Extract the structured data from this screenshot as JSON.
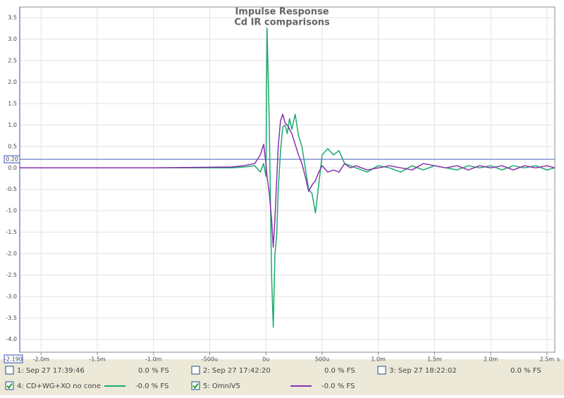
{
  "chart_data": {
    "type": "line",
    "title": "Impulse Response",
    "subtitle": "Cd IR comparisons",
    "x_unit": "s",
    "x_cursor_label": "-2.190",
    "y_cursor": {
      "value": 0.2,
      "label": "0.20"
    },
    "xlim": [
      -2.19,
      2.57
    ],
    "ylim": [
      -4.3,
      3.75
    ],
    "grid": true,
    "xticks": [
      {
        "value": -2.0,
        "label": "-2.0m"
      },
      {
        "value": -1.5,
        "label": "-1.5m"
      },
      {
        "value": -1.0,
        "label": "-1.0m"
      },
      {
        "value": -0.5,
        "label": "-500u"
      },
      {
        "value": 0,
        "label": "0u"
      },
      {
        "value": 0.5,
        "label": "500u"
      },
      {
        "value": 1.0,
        "label": "1.0m"
      },
      {
        "value": 1.5,
        "label": "1.5m"
      },
      {
        "value": 2.0,
        "label": "2.0m"
      },
      {
        "value": 2.5,
        "label": "2.5m"
      }
    ],
    "yticks": [
      3.5,
      {
        "value": 3,
        "label": "3.0"
      },
      2.5,
      {
        "value": 2,
        "label": "2.0"
      },
      1.5,
      {
        "value": 1,
        "label": "1.0"
      },
      0.5,
      {
        "value": 0,
        "label": "0.0"
      },
      -0.5,
      {
        "value": -1,
        "label": "-1.0"
      },
      -1.5,
      {
        "value": -2,
        "label": "-2.0"
      },
      -2.5,
      {
        "value": -3,
        "label": "-3.0"
      },
      -3.5,
      {
        "value": -4,
        "label": "-4.0"
      }
    ],
    "x": [
      -2.19,
      -1.0,
      -0.3,
      -0.2,
      -0.1,
      -0.05,
      -0.02,
      0.0,
      0.01,
      0.03,
      0.05,
      0.065,
      0.08,
      0.095,
      0.11,
      0.13,
      0.15,
      0.17,
      0.19,
      0.21,
      0.23,
      0.26,
      0.29,
      0.32,
      0.35,
      0.38,
      0.41,
      0.44,
      0.47,
      0.5,
      0.55,
      0.6,
      0.65,
      0.7,
      0.75,
      0.8,
      0.9,
      1.0,
      1.1,
      1.2,
      1.3,
      1.4,
      1.5,
      1.6,
      1.7,
      1.8,
      1.9,
      2.0,
      2.1,
      2.2,
      2.3,
      2.4,
      2.5,
      2.57
    ],
    "series": [
      {
        "name": "4: CD+WG+XO no cone",
        "color": "#1aab6c",
        "label_color": "#1a8a8a",
        "level": "-0.0 % FS",
        "checked": true,
        "values": [
          0,
          0,
          0,
          0.02,
          0.05,
          -0.1,
          0.1,
          -0.2,
          3.25,
          1.0,
          -2.5,
          -3.72,
          -2.0,
          -1.6,
          -0.5,
          0.4,
          0.95,
          1.0,
          0.8,
          1.15,
          0.9,
          1.25,
          0.75,
          0.5,
          0.0,
          -0.5,
          -0.6,
          -1.05,
          -0.4,
          0.3,
          0.45,
          0.3,
          0.4,
          0.1,
          0.05,
          0.0,
          -0.1,
          0.05,
          0.0,
          -0.1,
          0.05,
          -0.05,
          0.05,
          0.0,
          -0.05,
          0.05,
          0.0,
          0.05,
          -0.05,
          0.05,
          0.0,
          0.05,
          -0.05,
          0.0
        ]
      },
      {
        "name": "5: OmniV5",
        "color": "#8a30b0",
        "label_color": "#9a30c0",
        "level": "-0.0 % FS",
        "checked": true,
        "values": [
          0,
          0,
          0.02,
          0.05,
          0.1,
          0.3,
          0.55,
          0.1,
          -0.2,
          -0.6,
          -1.2,
          -1.85,
          -1.2,
          -0.3,
          0.5,
          1.1,
          1.25,
          1.05,
          1.0,
          0.9,
          0.8,
          0.55,
          0.3,
          0.1,
          -0.2,
          -0.55,
          -0.4,
          -0.3,
          -0.1,
          0.05,
          -0.1,
          -0.05,
          -0.1,
          0.1,
          0.0,
          0.05,
          -0.05,
          0.0,
          0.05,
          0.0,
          -0.05,
          0.1,
          0.05,
          0.0,
          0.05,
          -0.05,
          0.05,
          0.0,
          0.05,
          -0.05,
          0.05,
          0.0,
          0.05,
          0.0
        ]
      }
    ],
    "other_measurements": [
      {
        "name": "1: Sep 27 17:39:46",
        "level": "0.0 % FS",
        "color": "#d03030",
        "checked": false
      },
      {
        "name": "2: Sep 27 17:42:20",
        "level": "0.0 % FS",
        "color": "#1a9a1a",
        "checked": false
      },
      {
        "name": "3: Sep 27 18:22:02",
        "level": "0.0 % FS",
        "color": "#208a8a",
        "checked": false
      }
    ]
  }
}
